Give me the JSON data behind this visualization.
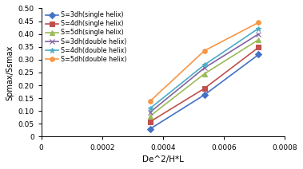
{
  "x_values": [
    0.000357,
    0.000536,
    0.000714
  ],
  "series": [
    {
      "label": "S=3dh(single helix)",
      "color": "#4472C4",
      "marker": "D",
      "markersize": 4,
      "y": [
        0.03,
        0.163,
        0.32
      ]
    },
    {
      "label": "S=4dh(single helix)",
      "color": "#C0504D",
      "marker": "s",
      "markersize": 4,
      "y": [
        0.058,
        0.188,
        0.348
      ]
    },
    {
      "label": "S=5dh(single helix)",
      "color": "#9BBB59",
      "marker": "^",
      "markersize": 4,
      "y": [
        0.08,
        0.245,
        0.378
      ]
    },
    {
      "label": "S=3dh(double helix)",
      "color": "#8064A2",
      "marker": "x",
      "markersize": 4,
      "y": [
        0.095,
        0.268,
        0.4
      ]
    },
    {
      "label": "S=4dh(double helix)",
      "color": "#4BACC6",
      "marker": "*",
      "markersize": 5,
      "y": [
        0.11,
        0.28,
        0.422
      ]
    },
    {
      "label": "S=5dh(double helix)",
      "color": "#F79646",
      "marker": "o",
      "markersize": 4,
      "y": [
        0.138,
        0.335,
        0.445
      ]
    }
  ],
  "xlabel": "De^2/H*L",
  "ylabel": "Spmax/Ssmax",
  "xlim": [
    0,
    0.0008
  ],
  "ylim": [
    0,
    0.5
  ],
  "xticks": [
    0,
    0.0002,
    0.0004,
    0.0006,
    0.0008
  ],
  "yticks": [
    0,
    0.05,
    0.1,
    0.15,
    0.2,
    0.25,
    0.3,
    0.35,
    0.4,
    0.45,
    0.5
  ],
  "background_color": "#ffffff",
  "legend_fontsize": 5.8,
  "tick_fontsize": 6.5,
  "xlabel_fontsize": 7.5,
  "ylabel_fontsize": 7.0,
  "linewidth": 1.2
}
